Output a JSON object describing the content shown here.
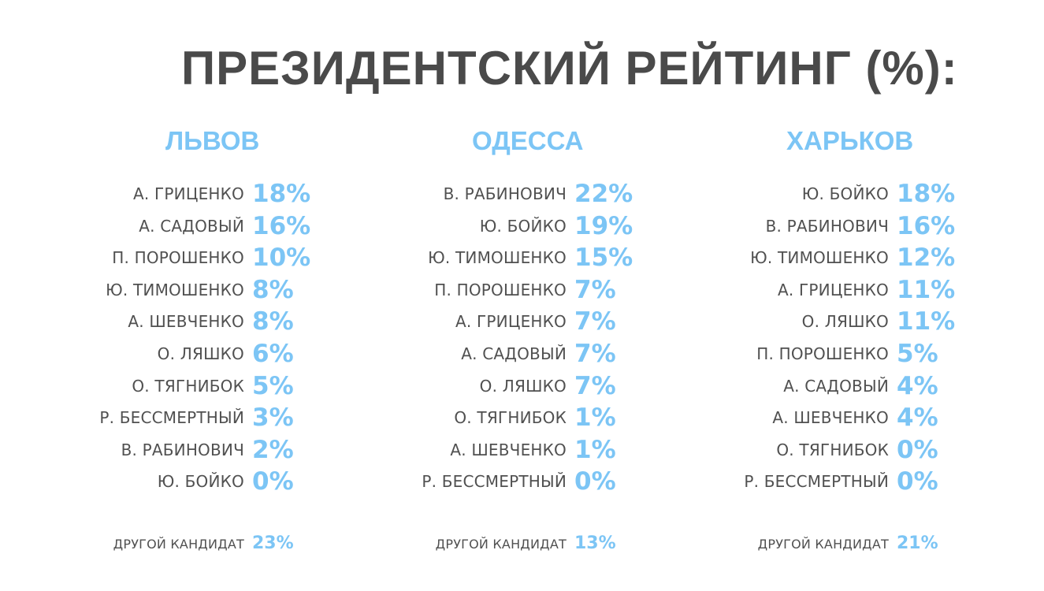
{
  "title": "ПРЕЗИДЕНТСКИЙ РЕЙТИНГ (%):",
  "colors": {
    "title": "#4a4a4a",
    "accent": "#7cc5f5",
    "names": "#505050"
  },
  "cities": [
    {
      "name": "ЛЬВОВ",
      "rows": [
        {
          "candidate": "А. ГРИЦЕНКО",
          "value": "18%"
        },
        {
          "candidate": "А. САДОВЫЙ",
          "value": "16%"
        },
        {
          "candidate": "П. ПОРОШЕНКО",
          "value": "10%"
        },
        {
          "candidate": "Ю. ТИМОШЕНКО",
          "value": "8%"
        },
        {
          "candidate": "А. ШЕВЧЕНКО",
          "value": "8%"
        },
        {
          "candidate": "О. ЛЯШКО",
          "value": "6%"
        },
        {
          "candidate": "О. ТЯГНИБОК",
          "value": "5%"
        },
        {
          "candidate": "Р. БЕССМЕРТНЫЙ",
          "value": "3%"
        },
        {
          "candidate": "В. РАБИНОВИЧ",
          "value": "2%"
        },
        {
          "candidate": "Ю. БОЙКО",
          "value": "0%"
        }
      ],
      "other": {
        "candidate": "ДРУГОЙ КАНДИДАТ",
        "value": "23%"
      }
    },
    {
      "name": "ОДЕССА",
      "rows": [
        {
          "candidate": "В. РАБИНОВИЧ",
          "value": "22%"
        },
        {
          "candidate": "Ю. БОЙКО",
          "value": "19%"
        },
        {
          "candidate": "Ю. ТИМОШЕНКО",
          "value": "15%"
        },
        {
          "candidate": "П. ПОРОШЕНКО",
          "value": "7%"
        },
        {
          "candidate": "А. ГРИЦЕНКО",
          "value": "7%"
        },
        {
          "candidate": "А. САДОВЫЙ",
          "value": "7%"
        },
        {
          "candidate": "О. ЛЯШКО",
          "value": "7%"
        },
        {
          "candidate": "О. ТЯГНИБОК",
          "value": "1%"
        },
        {
          "candidate": "А. ШЕВЧЕНКО",
          "value": "1%"
        },
        {
          "candidate": "Р. БЕССМЕРТНЫЙ",
          "value": "0%"
        }
      ],
      "other": {
        "candidate": "ДРУГОЙ КАНДИДАТ",
        "value": "13%"
      }
    },
    {
      "name": "ХАРЬКОВ",
      "rows": [
        {
          "candidate": "Ю. БОЙКО",
          "value": "18%"
        },
        {
          "candidate": "В. РАБИНОВИЧ",
          "value": "16%"
        },
        {
          "candidate": "Ю. ТИМОШЕНКО",
          "value": "12%"
        },
        {
          "candidate": "А. ГРИЦЕНКО",
          "value": "11%"
        },
        {
          "candidate": "О. ЛЯШКО",
          "value": "11%"
        },
        {
          "candidate": "П. ПОРОШЕНКО",
          "value": "5%"
        },
        {
          "candidate": "А. САДОВЫЙ",
          "value": "4%"
        },
        {
          "candidate": "А. ШЕВЧЕНКО",
          "value": "4%"
        },
        {
          "candidate": "О. ТЯГНИБОК",
          "value": "0%"
        },
        {
          "candidate": "Р. БЕССМЕРТНЫЙ",
          "value": "0%"
        }
      ],
      "other": {
        "candidate": "ДРУГОЙ КАНДИДАТ",
        "value": "21%"
      }
    }
  ],
  "chart_data": {
    "type": "table",
    "title": "ПРЕЗИДЕНТСКИЙ РЕЙТИНГ (%):",
    "unit": "%",
    "tables": [
      {
        "city": "ЛЬВОВ",
        "categories": [
          "А. ГРИЦЕНКО",
          "А. САДОВЫЙ",
          "П. ПОРОШЕНКО",
          "Ю. ТИМОШЕНКО",
          "А. ШЕВЧЕНКО",
          "О. ЛЯШКО",
          "О. ТЯГНИБОК",
          "Р. БЕССМЕРТНЫЙ",
          "В. РАБИНОВИЧ",
          "Ю. БОЙКО",
          "ДРУГОЙ КАНДИДАТ"
        ],
        "values": [
          18,
          16,
          10,
          8,
          8,
          6,
          5,
          3,
          2,
          0,
          23
        ]
      },
      {
        "city": "ОДЕССА",
        "categories": [
          "В. РАБИНОВИЧ",
          "Ю. БОЙКО",
          "Ю. ТИМОШЕНКО",
          "П. ПОРОШЕНКО",
          "А. ГРИЦЕНКО",
          "А. САДОВЫЙ",
          "О. ЛЯШКО",
          "О. ТЯГНИБОК",
          "А. ШЕВЧЕНКО",
          "Р. БЕССМЕРТНЫЙ",
          "ДРУГОЙ КАНДИДАТ"
        ],
        "values": [
          22,
          19,
          15,
          7,
          7,
          7,
          7,
          1,
          1,
          0,
          13
        ]
      },
      {
        "city": "ХАРЬКОВ",
        "categories": [
          "Ю. БОЙКО",
          "В. РАБИНОВИЧ",
          "Ю. ТИМОШЕНКО",
          "А. ГРИЦЕНКО",
          "О. ЛЯШКО",
          "П. ПОРОШЕНКО",
          "А. САДОВЫЙ",
          "А. ШЕВЧЕНКО",
          "О. ТЯГНИБОК",
          "Р. БЕССМЕРТНЫЙ",
          "ДРУГОЙ КАНДИДАТ"
        ],
        "values": [
          18,
          16,
          12,
          11,
          11,
          5,
          4,
          4,
          0,
          0,
          21
        ]
      }
    ]
  }
}
